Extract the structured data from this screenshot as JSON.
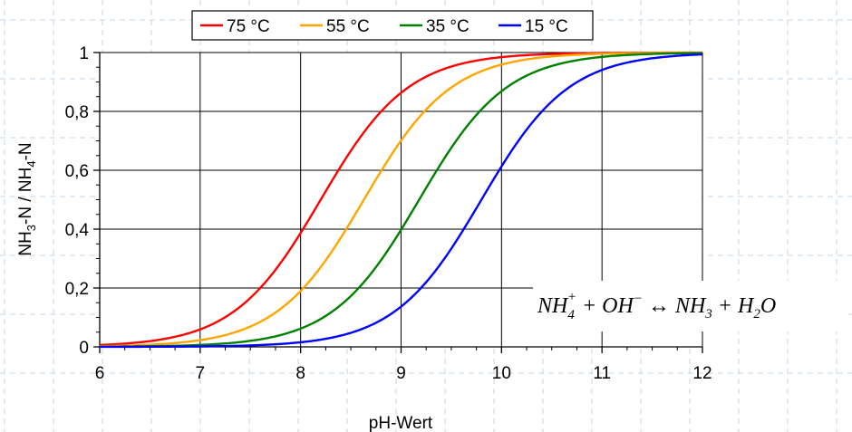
{
  "chart_data": {
    "type": "line",
    "title": "",
    "xlabel": "pH-Wert",
    "ylabel": {
      "p1": "NH",
      "s1": "3",
      "p2": "-N / NH",
      "s2": "4",
      "p3": "-N"
    },
    "xlim": [
      6,
      12
    ],
    "ylim": [
      0,
      1
    ],
    "x_ticks": [
      "6",
      "7",
      "8",
      "9",
      "10",
      "11",
      "12"
    ],
    "y_ticks": [
      "0",
      "0,2",
      "0,4",
      "0,6",
      "0,8",
      "1"
    ],
    "grid": true,
    "legend_position": "top",
    "x": [
      6,
      6.5,
      7,
      7.5,
      8,
      8.5,
      9,
      9.5,
      10,
      10.5,
      11,
      11.5,
      12
    ],
    "series": [
      {
        "name": "75 °C",
        "color": "#ff0000",
        "pKa": 8.2,
        "values": [
          0.006,
          0.02,
          0.06,
          0.17,
          0.39,
          0.67,
          0.86,
          0.95,
          0.98,
          0.99,
          1.0,
          1.0,
          1.0
        ]
      },
      {
        "name": "55 °C",
        "color": "#ffa500",
        "pKa": 8.63,
        "values": [
          0.002,
          0.007,
          0.023,
          0.07,
          0.19,
          0.43,
          0.7,
          0.88,
          0.96,
          0.99,
          1.0,
          1.0,
          1.0
        ]
      },
      {
        "name": "35 °C",
        "color": "#008000",
        "pKa": 9.18,
        "values": [
          0.001,
          0.002,
          0.007,
          0.02,
          0.06,
          0.17,
          0.4,
          0.68,
          0.87,
          0.95,
          0.98,
          0.99,
          1.0
        ]
      },
      {
        "name": "15 °C",
        "color": "#0000ff",
        "pKa": 9.8,
        "values": [
          0.0,
          0.001,
          0.002,
          0.005,
          0.016,
          0.05,
          0.14,
          0.33,
          0.61,
          0.83,
          0.94,
          0.98,
          0.99
        ]
      }
    ],
    "annotation": {
      "t1": "NH",
      "t1_sub": "4",
      "t1_sup": "+",
      "t2": " + OH",
      "t2_sup": "−",
      "t3": " ↔ NH",
      "t3_sub": "3",
      "t4": " + H",
      "t4_sub": "2",
      "t5": "O"
    }
  }
}
